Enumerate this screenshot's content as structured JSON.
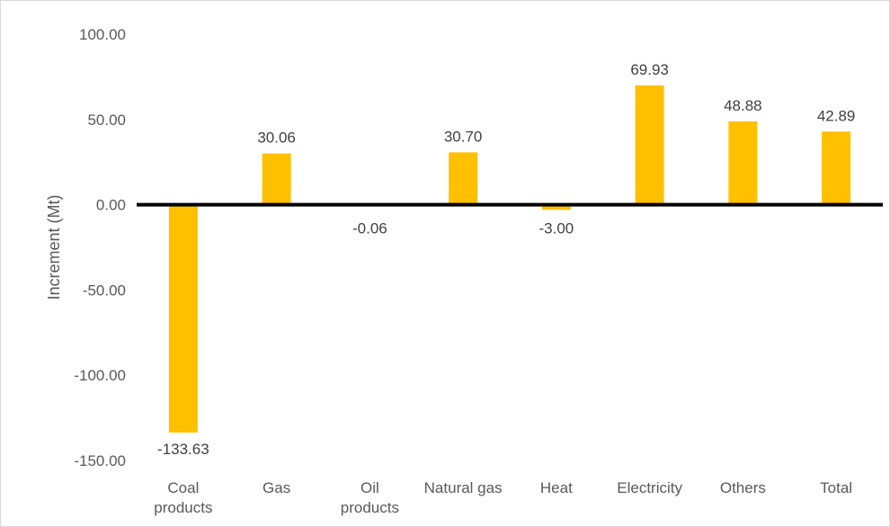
{
  "chart_data": {
    "type": "bar",
    "title": "",
    "xlabel": "",
    "ylabel": "Increment (Mt)",
    "ylim": [
      -150,
      100
    ],
    "yticks": [
      100,
      50,
      0,
      -50,
      -100,
      -150
    ],
    "ytick_labels": [
      "100.00",
      "50.00",
      "0.00",
      "-50.00",
      "-100.00",
      "-150.00"
    ],
    "categories": [
      [
        "Coal",
        "products"
      ],
      [
        "Gas"
      ],
      [
        "Oil",
        "products"
      ],
      [
        "Natural gas"
      ],
      [
        "Heat"
      ],
      [
        "Electricity"
      ],
      [
        "Others"
      ],
      [
        "Total"
      ]
    ],
    "values": [
      -133.63,
      30.06,
      -0.06,
      30.7,
      -3.0,
      69.93,
      48.88,
      42.89
    ],
    "data_labels": [
      "-133.63",
      "30.06",
      "-0.06",
      "30.70",
      "-3.00",
      "69.93",
      "48.88",
      "42.89"
    ],
    "grid": false,
    "legend": "none",
    "bar_color": "#FFC000",
    "zero_line_color": "#000000"
  }
}
